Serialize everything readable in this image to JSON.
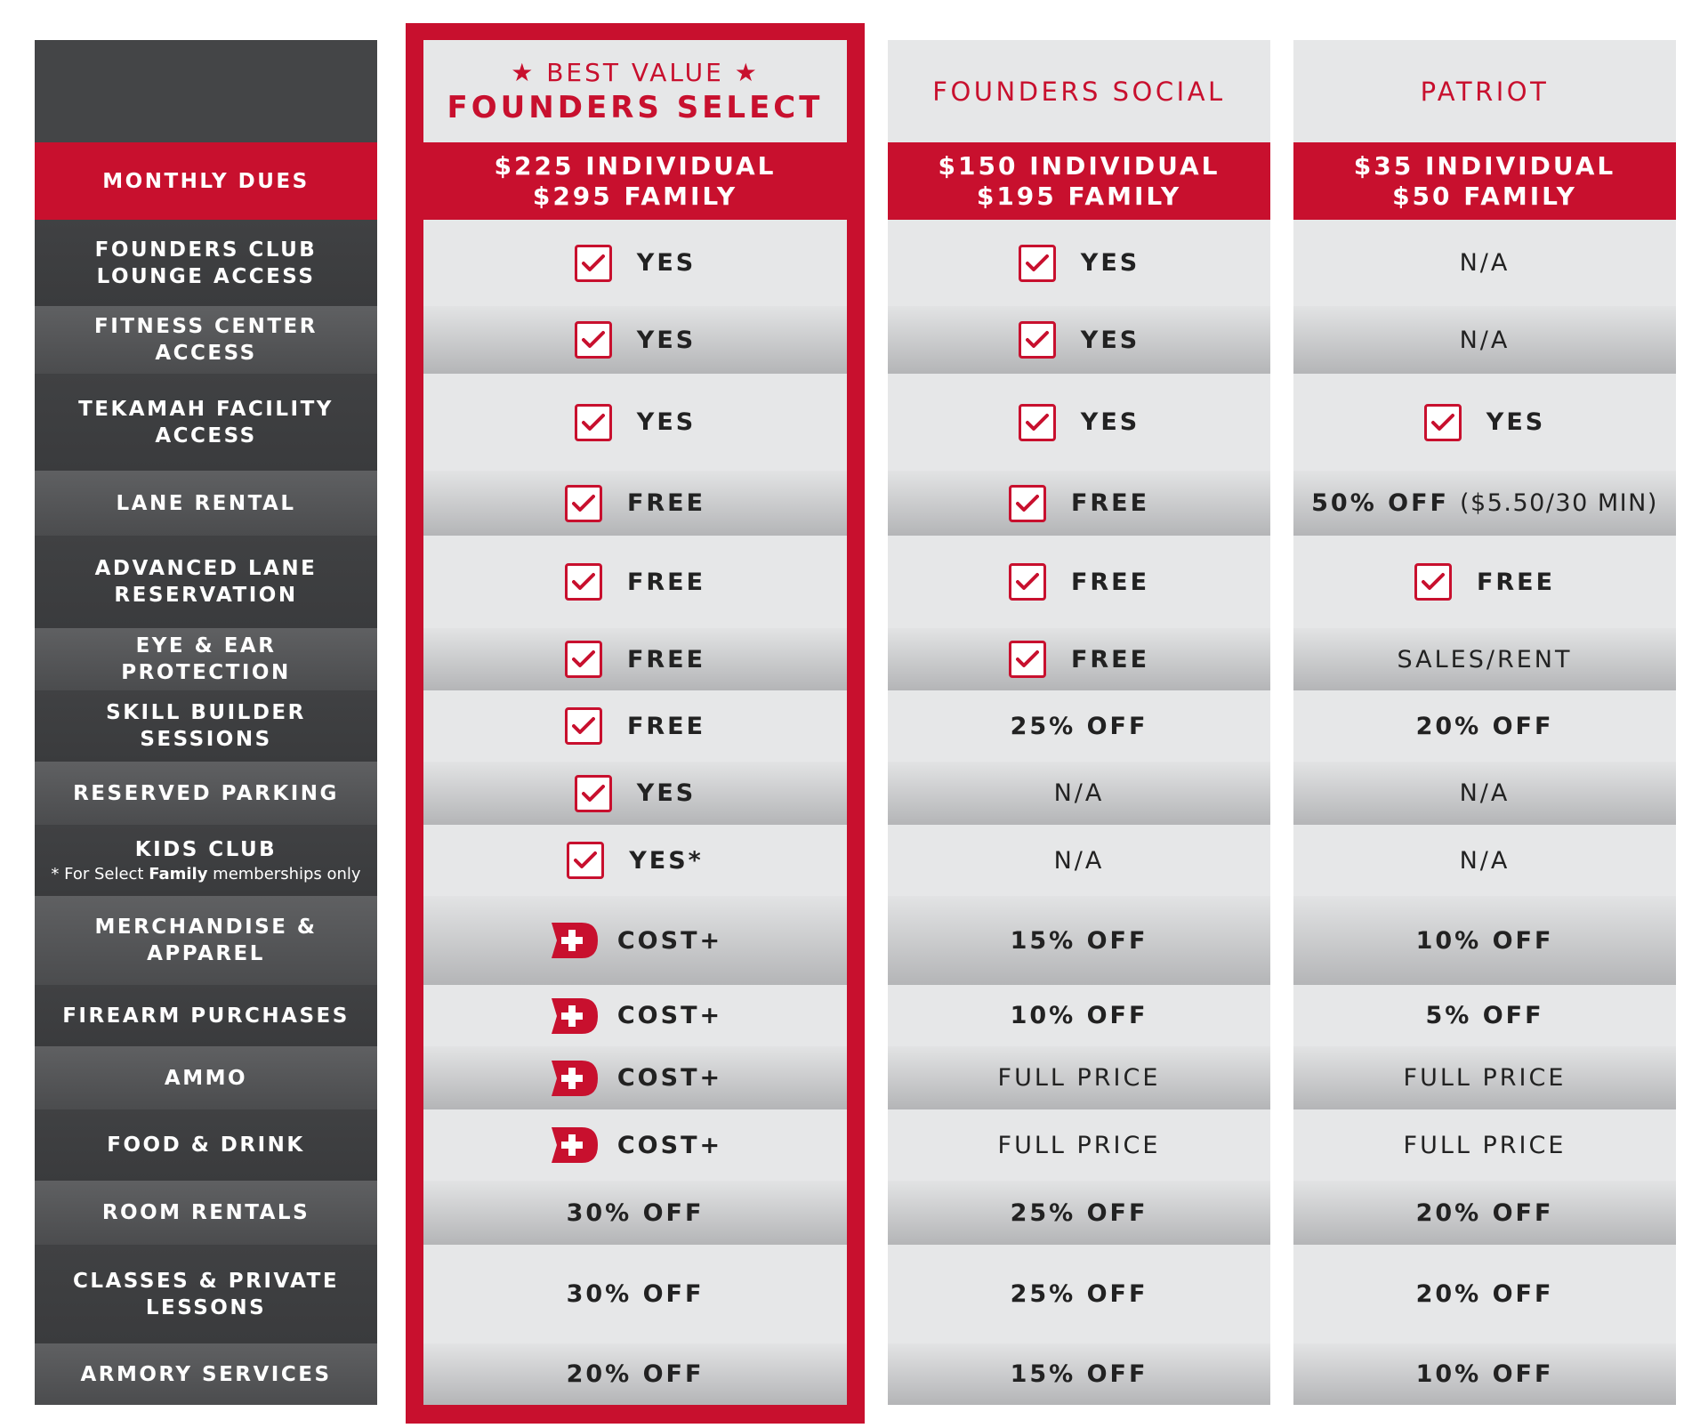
{
  "labels": {
    "monthly_dues": "MONTHLY DUES",
    "rows": [
      "FOUNDERS CLUB LOUNGE ACCESS",
      "FITNESS CENTER ACCESS",
      "TEKAMAH FACILITY ACCESS",
      "LANE RENTAL",
      "ADVANCED LANE RESERVATION",
      "EYE & EAR PROTECTION",
      "SKILL BUILDER SESSIONS",
      "RESERVED PARKING",
      "KIDS CLUB",
      "MERCHANDISE & APPAREL",
      "FIREARM PURCHASES",
      "AMMO",
      "FOOD & DRINK",
      "ROOM RENTALS",
      "CLASSES & PRIVATE LESSONS",
      "ARMORY SERVICES"
    ],
    "kids_note_pre": "* For Select ",
    "kids_note_bold": "Family",
    "kids_note_post": " memberships only"
  },
  "tiers": [
    {
      "badge": "★ BEST VALUE ★",
      "name": "FOUNDERS SELECT",
      "price_individual": "$225 INDIVIDUAL",
      "price_family": "$295 FAMILY",
      "values": [
        "YES",
        "YES",
        "YES",
        "FREE",
        "FREE",
        "FREE",
        "FREE",
        "YES",
        "YES*",
        "COST+",
        "COST+",
        "COST+",
        "COST+",
        "30% OFF",
        "30% OFF",
        "20% OFF"
      ]
    },
    {
      "name": "FOUNDERS SOCIAL",
      "price_individual": "$150 INDIVIDUAL",
      "price_family": "$195 FAMILY",
      "values": [
        "YES",
        "YES",
        "YES",
        "FREE",
        "FREE",
        "FREE",
        "25% OFF",
        "N/A",
        "N/A",
        "15% OFF",
        "10% OFF",
        "FULL PRICE",
        "FULL PRICE",
        "25% OFF",
        "25% OFF",
        "15% OFF"
      ]
    },
    {
      "name": "PATRIOT",
      "price_individual": "$35 INDIVIDUAL",
      "price_family": "$50 FAMILY",
      "values": [
        "N/A",
        "N/A",
        "YES",
        "50% OFF",
        "FREE",
        "SALES/RENT",
        "20% OFF",
        "N/A",
        "N/A",
        "10% OFF",
        "5% OFF",
        "FULL PRICE",
        "FULL PRICE",
        "20% OFF",
        "20% OFF",
        "10% OFF"
      ],
      "lane_rental_detail": "($5.50/30 MIN)"
    }
  ],
  "colors": {
    "accent": "#c8102e",
    "label_dark": "#404143",
    "row_light": "#e6e7e8"
  },
  "icons": {
    "check": "checkbox-check-icon",
    "cost_plus": "cost-plus-icon"
  }
}
